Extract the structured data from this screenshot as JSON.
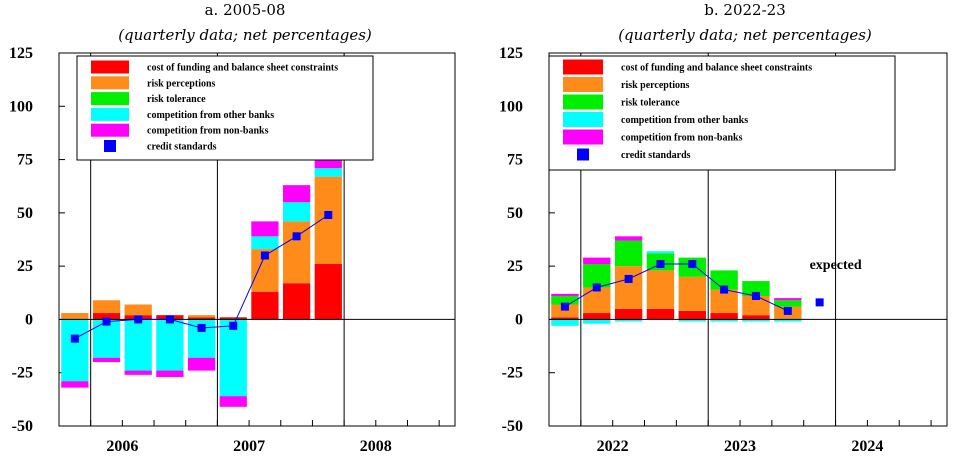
{
  "colors": {
    "cost": "#ff0000",
    "risk_perceptions": "#ff8c1a",
    "risk_tolerance": "#00ee00",
    "competition_banks": "#00ffff",
    "competition_nonbanks": "#ff00ff",
    "credit_standards": "#0000ff"
  },
  "chart_data": [
    {
      "type": "bar",
      "title": "a. 2005-08",
      "subtitle": "(quarterly data; net percentages)",
      "ylim": [
        -50,
        125
      ],
      "yticks": [
        125,
        100,
        75,
        50,
        25,
        0,
        -25,
        -50
      ],
      "ytick_labels": [
        "125",
        "100",
        "75",
        "50",
        "25",
        "0",
        "-25",
        "-50"
      ],
      "xlim": [
        0,
        12.5
      ],
      "x_tick_labels": [
        {
          "label": "2006",
          "x": 2
        },
        {
          "label": "2007",
          "x": 6
        },
        {
          "label": "2008",
          "x": 10
        }
      ],
      "year_separators": [
        1,
        5,
        9
      ],
      "legend": [
        {
          "key": "cost",
          "label": "cost of funding and balance sheet constraints"
        },
        {
          "key": "risk_perceptions",
          "label": "risk perceptions"
        },
        {
          "key": "risk_tolerance",
          "label": "risk tolerance"
        },
        {
          "key": "competition_banks",
          "label": "competition from other banks"
        },
        {
          "key": "competition_nonbanks",
          "label": "competition from non-banks"
        },
        {
          "key": "credit_standards",
          "label": "credit standards"
        }
      ],
      "bars": [
        {
          "x": 0.5,
          "segments": [
            [
              "cost",
              0
            ],
            [
              "risk_perceptions",
              3
            ],
            [
              "risk_tolerance",
              0
            ],
            [
              "competition_banks",
              -29
            ],
            [
              "competition_nonbanks",
              -3
            ]
          ]
        },
        {
          "x": 1.5,
          "segments": [
            [
              "cost",
              3
            ],
            [
              "risk_perceptions",
              6
            ],
            [
              "risk_tolerance",
              0
            ],
            [
              "competition_banks",
              -18
            ],
            [
              "competition_nonbanks",
              -2
            ]
          ]
        },
        {
          "x": 2.5,
          "segments": [
            [
              "cost",
              2
            ],
            [
              "risk_perceptions",
              5
            ],
            [
              "risk_tolerance",
              0
            ],
            [
              "competition_banks",
              -24
            ],
            [
              "competition_nonbanks",
              -2
            ]
          ]
        },
        {
          "x": 3.5,
          "segments": [
            [
              "cost",
              2
            ],
            [
              "risk_perceptions",
              0
            ],
            [
              "risk_tolerance",
              0
            ],
            [
              "competition_banks",
              -24
            ],
            [
              "competition_nonbanks",
              -3
            ]
          ]
        },
        {
          "x": 4.5,
          "segments": [
            [
              "cost",
              1
            ],
            [
              "risk_perceptions",
              1
            ],
            [
              "risk_tolerance",
              0
            ],
            [
              "competition_banks",
              -18
            ],
            [
              "competition_nonbanks",
              -6
            ]
          ]
        },
        {
          "x": 5.5,
          "segments": [
            [
              "cost",
              1
            ],
            [
              "risk_perceptions",
              0
            ],
            [
              "risk_tolerance",
              0
            ],
            [
              "competition_banks",
              -36
            ],
            [
              "competition_nonbanks",
              -5
            ]
          ]
        },
        {
          "x": 6.5,
          "segments": [
            [
              "cost",
              13
            ],
            [
              "risk_perceptions",
              20
            ],
            [
              "risk_tolerance",
              0
            ],
            [
              "competition_banks",
              6
            ],
            [
              "competition_nonbanks",
              7
            ]
          ]
        },
        {
          "x": 7.5,
          "segments": [
            [
              "cost",
              17
            ],
            [
              "risk_perceptions",
              29
            ],
            [
              "risk_tolerance",
              0
            ],
            [
              "competition_banks",
              9
            ],
            [
              "competition_nonbanks",
              8
            ]
          ]
        },
        {
          "x": 8.5,
          "segments": [
            [
              "cost",
              26
            ],
            [
              "risk_perceptions",
              41
            ],
            [
              "risk_tolerance",
              0
            ],
            [
              "competition_banks",
              4
            ],
            [
              "competition_nonbanks",
              5
            ]
          ]
        }
      ],
      "line": {
        "x": [
          0.5,
          1.5,
          2.5,
          3.5,
          4.5,
          5.5,
          6.5,
          7.5,
          8.5
        ],
        "y": [
          -9,
          -1,
          0,
          0,
          -4,
          -3,
          30,
          39,
          49
        ]
      },
      "annotation": ""
    },
    {
      "type": "bar",
      "title": "b. 2022-23",
      "subtitle": "(quarterly data; net percentages)",
      "ylim": [
        -50,
        125
      ],
      "yticks": [
        125,
        100,
        75,
        50,
        25,
        0,
        -25,
        -50
      ],
      "ytick_labels": [
        "125",
        "100",
        "75",
        "50",
        "25",
        "0",
        "-25",
        "-50"
      ],
      "xlim": [
        0,
        12.5
      ],
      "x_tick_labels": [
        {
          "label": "2022",
          "x": 2
        },
        {
          "label": "2023",
          "x": 6
        },
        {
          "label": "2024",
          "x": 10
        }
      ],
      "year_separators": [
        1,
        5,
        9
      ],
      "legend": [
        {
          "key": "cost",
          "label": "cost of funding and balance sheet constraints"
        },
        {
          "key": "risk_perceptions",
          "label": "risk perceptions"
        },
        {
          "key": "risk_tolerance",
          "label": "risk tolerance"
        },
        {
          "key": "competition_banks",
          "label": "competition from other banks"
        },
        {
          "key": "competition_nonbanks",
          "label": "competition from non-banks"
        },
        {
          "key": "credit_standards",
          "label": "credit standards"
        }
      ],
      "bars": [
        {
          "x": 0.5,
          "segments": [
            [
              "cost",
              1
            ],
            [
              "risk_perceptions",
              6
            ],
            [
              "risk_tolerance",
              4
            ],
            [
              "competition_banks",
              -3
            ],
            [
              "competition_nonbanks",
              1
            ]
          ]
        },
        {
          "x": 1.5,
          "segments": [
            [
              "cost",
              3
            ],
            [
              "risk_perceptions",
              12
            ],
            [
              "risk_tolerance",
              11
            ],
            [
              "competition_banks",
              -2
            ],
            [
              "competition_nonbanks",
              3
            ]
          ]
        },
        {
          "x": 2.5,
          "segments": [
            [
              "cost",
              5
            ],
            [
              "risk_perceptions",
              20
            ],
            [
              "risk_tolerance",
              12
            ],
            [
              "competition_banks",
              -1
            ],
            [
              "competition_nonbanks",
              2
            ]
          ]
        },
        {
          "x": 3.5,
          "segments": [
            [
              "cost",
              5
            ],
            [
              "risk_perceptions",
              18
            ],
            [
              "risk_tolerance",
              8
            ],
            [
              "competition_banks",
              1
            ],
            [
              "competition_nonbanks",
              0
            ]
          ]
        },
        {
          "x": 4.5,
          "segments": [
            [
              "cost",
              4
            ],
            [
              "risk_perceptions",
              16
            ],
            [
              "risk_tolerance",
              9
            ],
            [
              "competition_banks",
              -1
            ],
            [
              "competition_nonbanks",
              0
            ]
          ]
        },
        {
          "x": 5.5,
          "segments": [
            [
              "cost",
              3
            ],
            [
              "risk_perceptions",
              11
            ],
            [
              "risk_tolerance",
              9
            ],
            [
              "competition_banks",
              -1
            ],
            [
              "competition_nonbanks",
              0
            ]
          ]
        },
        {
          "x": 6.5,
          "segments": [
            [
              "cost",
              2
            ],
            [
              "risk_perceptions",
              9
            ],
            [
              "risk_tolerance",
              7
            ],
            [
              "competition_banks",
              -1
            ],
            [
              "competition_nonbanks",
              0
            ]
          ]
        },
        {
          "x": 7.5,
          "segments": [
            [
              "cost",
              0
            ],
            [
              "risk_perceptions",
              6
            ],
            [
              "risk_tolerance",
              3
            ],
            [
              "competition_banks",
              -1
            ],
            [
              "competition_nonbanks",
              1
            ]
          ]
        }
      ],
      "line": {
        "x": [
          0.5,
          1.5,
          2.5,
          3.5,
          4.5,
          5.5,
          6.5,
          7.5
        ],
        "y": [
          6,
          15,
          19,
          26,
          26,
          14,
          11,
          4
        ]
      },
      "extra_point": {
        "x": 8.5,
        "y": 8
      },
      "annotation": "expected"
    }
  ]
}
